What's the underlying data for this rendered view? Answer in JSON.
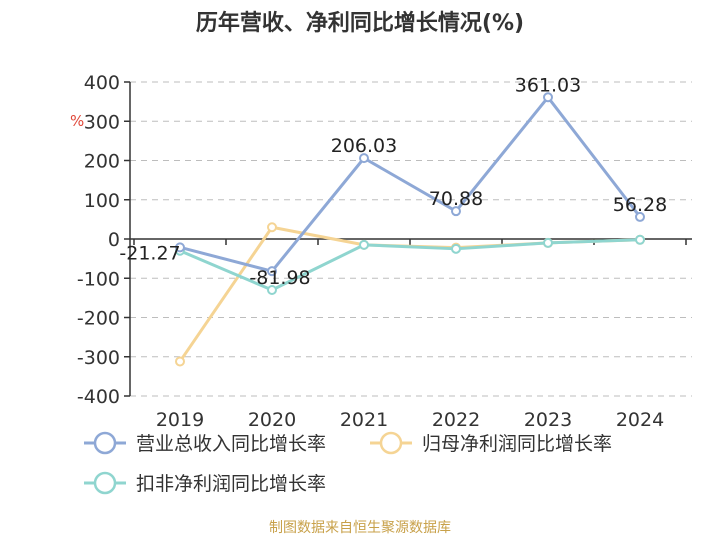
{
  "chart_data": {
    "type": "line",
    "title": "历年营收、净利同比增长情况(%)",
    "ylabel": "%",
    "categories": [
      "2019",
      "2020",
      "2021",
      "2022",
      "2023",
      "2024"
    ],
    "ylim": [
      -400,
      400
    ],
    "yticks": [
      400,
      300,
      200,
      100,
      0,
      -100,
      -200,
      -300,
      -400
    ],
    "grid": true,
    "legend_position": "bottom",
    "series": [
      {
        "name": "营业总收入同比增长率",
        "color": "#8ea8d6",
        "values": [
          -21.27,
          -81.98,
          206.03,
          70.88,
          361.03,
          56.28
        ],
        "labels": [
          "-21.27",
          "-81.98",
          "206.03",
          "70.88",
          "361.03",
          "56.28"
        ]
      },
      {
        "name": "归母净利润同比增长率",
        "color": "#f5d494",
        "values": [
          -312,
          30,
          -15,
          -22,
          -10,
          -2
        ]
      },
      {
        "name": "扣非净利润同比增长率",
        "color": "#8fd5cf",
        "values": [
          -30,
          -130,
          -15,
          -25,
          -10,
          -2
        ]
      }
    ],
    "source": "制图数据来自恒生聚源数据库"
  }
}
